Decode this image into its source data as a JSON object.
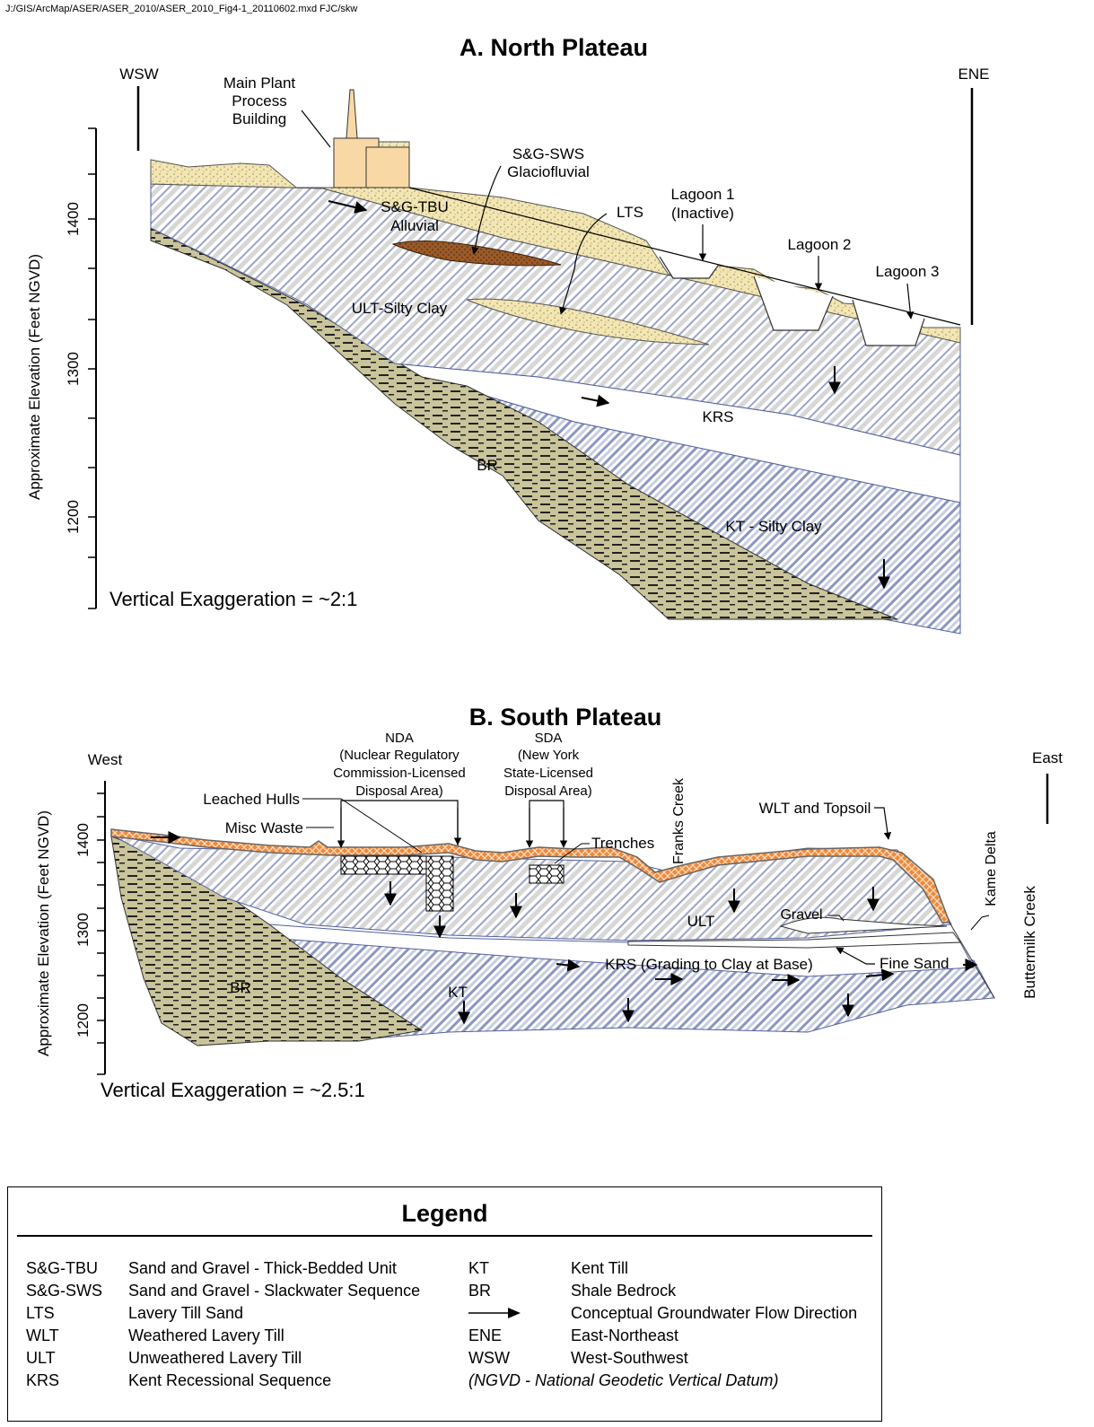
{
  "header": {
    "file_path": "J:/GIS/ArcMap/ASER/ASER_2010/ASER_2010_Fig4-1_20110602.mxd   FJC/skw"
  },
  "panel_a": {
    "title": "A. North Plateau",
    "left_direction": "WSW",
    "right_direction": "ENE",
    "y_axis_label": "Approximate Elevation (Feet NGVD)",
    "y_ticks": [
      "1400",
      "1300",
      "1200"
    ],
    "exaggeration": "Vertical Exaggeration = ~2:1",
    "labels": {
      "main_plant_1": "Main Plant",
      "main_plant_2": "Process",
      "main_plant_3": "Building",
      "sg_sws_1": "S&G-SWS",
      "sg_sws_2": "Glaciofluvial",
      "sg_tbu_1": "S&G-TBU",
      "sg_tbu_2": "Alluvial",
      "lts": "LTS",
      "lagoon1_1": "Lagoon 1",
      "lagoon1_2": "(Inactive)",
      "lagoon2": "Lagoon 2",
      "lagoon3": "Lagoon 3",
      "ult": "ULT-Silty Clay",
      "krs": "KRS",
      "br": "BR",
      "kt": "KT - Silty Clay"
    }
  },
  "panel_b": {
    "title": "B. South Plateau",
    "left_direction": "West",
    "right_direction": "East",
    "y_axis_label": "Approximate Elevation (Feet NGVD)",
    "y_ticks": [
      "1400",
      "1300",
      "1200"
    ],
    "exaggeration": "Vertical Exaggeration = ~2.5:1",
    "labels": {
      "nda_1": "NDA",
      "nda_2": "(Nuclear Regulatory",
      "nda_3": "Commission-Licensed",
      "nda_4": "Disposal Area)",
      "sda_1": "SDA",
      "sda_2": "(New York",
      "sda_3": "State-Licensed",
      "sda_4": "Disposal Area)",
      "franks_creek": "Franks Creek",
      "leached_hulls": "Leached Hulls",
      "misc_waste": "Misc Waste",
      "trenches": "Trenches",
      "wlt_topsoil": "WLT and Topsoil",
      "kame_delta": "Kame Delta",
      "buttermilk_creek": "Buttermilk Creek",
      "gravel": "Gravel",
      "ult": "ULT",
      "fine_sand": "Fine Sand",
      "krs": "KRS (Grading to Clay at Base)",
      "kt": "KT",
      "br": "BR"
    }
  },
  "legend": {
    "title": "Legend",
    "left": [
      {
        "abbr": "S&G-TBU",
        "desc": "Sand and Gravel - Thick-Bedded Unit"
      },
      {
        "abbr": "S&G-SWS",
        "desc": "Sand and Gravel - Slackwater Sequence"
      },
      {
        "abbr": "LTS",
        "desc": "Lavery Till Sand"
      },
      {
        "abbr": "WLT",
        "desc": "Weathered Lavery Till"
      },
      {
        "abbr": "ULT",
        "desc": "Unweathered Lavery Till"
      },
      {
        "abbr": "KRS",
        "desc": "Kent Recessional Sequence"
      }
    ],
    "right": [
      {
        "abbr": "KT",
        "desc": "Kent Till"
      },
      {
        "abbr": "BR",
        "desc": "Shale Bedrock"
      },
      {
        "abbr": "",
        "desc": "Conceptual Groundwater Flow Direction"
      },
      {
        "abbr": "ENE",
        "desc": "East-Northeast"
      },
      {
        "abbr": "WSW",
        "desc": "West-Southwest"
      }
    ],
    "note": "(NGVD - National Geodetic Vertical Datum)"
  },
  "colors": {
    "sand": "#f3e6b0",
    "sws": "#9a5a28",
    "shale": "#c9c49a",
    "hatch_blue": "#9aa6c8",
    "hatch_gray": "#d4d4d4",
    "wlt_orange": "#f08a3a",
    "building": "#f8d9a6"
  }
}
